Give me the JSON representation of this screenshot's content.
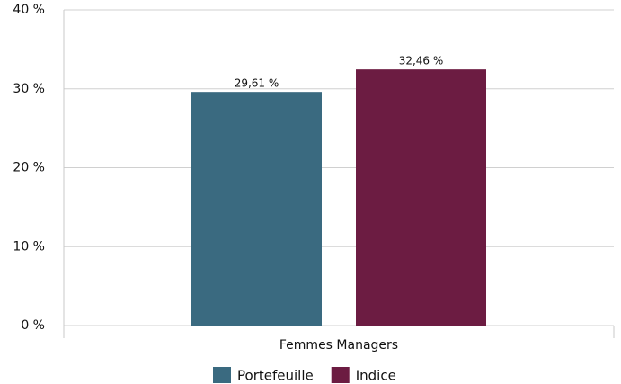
{
  "chart_data": {
    "type": "bar",
    "categories": [
      "Femmes Managers"
    ],
    "series": [
      {
        "name": "Portefeuille",
        "color": "#3a6a80",
        "values": [
          29.61
        ],
        "value_labels": [
          "29,61 %"
        ]
      },
      {
        "name": "Indice",
        "color": "#6c1c42",
        "values": [
          32.46
        ],
        "value_labels": [
          "32,46 %"
        ]
      }
    ],
    "ylim": [
      0,
      40
    ],
    "yticks": [
      {
        "value": 0,
        "label": "0 %"
      },
      {
        "value": 10,
        "label": "10 %"
      },
      {
        "value": 20,
        "label": "20 %"
      },
      {
        "value": 30,
        "label": "30 %"
      },
      {
        "value": 40,
        "label": "40 %"
      }
    ],
    "grid": true,
    "legend": "bottom"
  }
}
